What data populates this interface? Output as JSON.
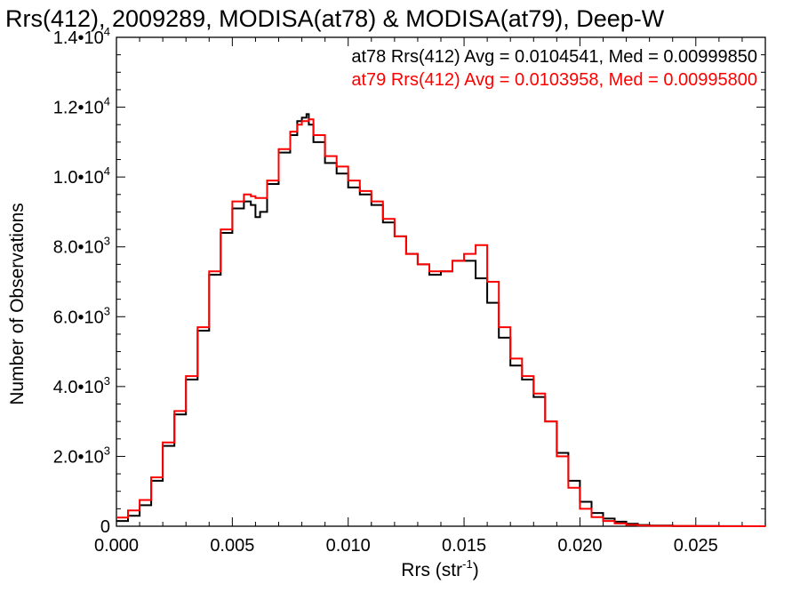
{
  "chart_data": {
    "type": "line",
    "step": true,
    "title": "Rrs(412), 2009289, MODISA(at78) & MODISA(at79), Deep-W",
    "xlabel": "Rrs (str",
    "xlabel_sup": "-1",
    "xlabel_close": ")",
    "ylabel": "Number of Observations",
    "xlim": [
      0.0,
      0.028
    ],
    "ylim": [
      0,
      14000
    ],
    "x_ticks": [
      {
        "value": 0.0,
        "label": "0.000"
      },
      {
        "value": 0.005,
        "label": "0.005"
      },
      {
        "value": 0.01,
        "label": "0.010"
      },
      {
        "value": 0.015,
        "label": "0.015"
      },
      {
        "value": 0.02,
        "label": "0.020"
      },
      {
        "value": 0.025,
        "label": "0.025"
      }
    ],
    "y_ticks": [
      {
        "value": 0,
        "mant": "0",
        "exp": ""
      },
      {
        "value": 2000,
        "mant": "2.0•10",
        "exp": "3"
      },
      {
        "value": 4000,
        "mant": "4.0•10",
        "exp": "3"
      },
      {
        "value": 6000,
        "mant": "6.0•10",
        "exp": "3"
      },
      {
        "value": 8000,
        "mant": "8.0•10",
        "exp": "3"
      },
      {
        "value": 10000,
        "mant": "1.0•10",
        "exp": "4"
      },
      {
        "value": 12000,
        "mant": "1.2•10",
        "exp": "4"
      },
      {
        "value": 14000,
        "mant": "1.4•10",
        "exp": "4"
      }
    ],
    "legend": [
      {
        "text": "at78 Rrs(412) Avg = 0.0104541, Med = 0.00999850",
        "color": "#000000"
      },
      {
        "text": "at79 Rrs(412) Avg = 0.0103958, Med = 0.00995800",
        "color": "#ff0000"
      }
    ],
    "legend_position": "top-right",
    "series": [
      {
        "color": "#000000",
        "x": [
          0.0,
          0.0005,
          0.001,
          0.0015,
          0.002,
          0.0025,
          0.003,
          0.0035,
          0.004,
          0.0045,
          0.005,
          0.0055,
          0.0058,
          0.006,
          0.0062,
          0.0065,
          0.007,
          0.0075,
          0.0078,
          0.008,
          0.0082,
          0.0083,
          0.0085,
          0.009,
          0.0095,
          0.01,
          0.0105,
          0.011,
          0.0115,
          0.012,
          0.0125,
          0.013,
          0.0135,
          0.014,
          0.0145,
          0.015,
          0.0155,
          0.016,
          0.0165,
          0.017,
          0.0175,
          0.018,
          0.0185,
          0.019,
          0.0195,
          0.02,
          0.0205,
          0.021,
          0.0215,
          0.022,
          0.0225,
          0.023,
          0.024,
          0.025,
          0.026,
          0.027,
          0.028
        ],
        "y": [
          150,
          300,
          600,
          1300,
          2300,
          3200,
          4200,
          5600,
          7200,
          8400,
          9100,
          9300,
          9200,
          8850,
          9000,
          9800,
          10700,
          11200,
          11600,
          11700,
          11800,
          11500,
          11000,
          10400,
          10100,
          9700,
          9500,
          9200,
          8700,
          8300,
          7800,
          7500,
          7200,
          7300,
          7600,
          7600,
          7100,
          6400,
          5400,
          4600,
          4200,
          3700,
          3000,
          2100,
          1300,
          700,
          380,
          220,
          130,
          70,
          35,
          20,
          8,
          4,
          2,
          1,
          0
        ]
      },
      {
        "color": "#ff0000",
        "x": [
          0.0,
          0.0005,
          0.001,
          0.0015,
          0.002,
          0.0025,
          0.003,
          0.0035,
          0.004,
          0.0045,
          0.005,
          0.0055,
          0.0058,
          0.006,
          0.0062,
          0.0065,
          0.007,
          0.0075,
          0.0078,
          0.008,
          0.0082,
          0.0083,
          0.0085,
          0.009,
          0.0095,
          0.01,
          0.0105,
          0.011,
          0.0115,
          0.012,
          0.0125,
          0.013,
          0.0135,
          0.014,
          0.0145,
          0.015,
          0.0155,
          0.016,
          0.0165,
          0.017,
          0.0175,
          0.018,
          0.0185,
          0.019,
          0.0195,
          0.02,
          0.0205,
          0.021,
          0.0215,
          0.022,
          0.0225,
          0.023,
          0.024,
          0.025,
          0.026,
          0.027,
          0.028
        ],
        "y": [
          250,
          450,
          750,
          1400,
          2400,
          3300,
          4300,
          5700,
          7300,
          8500,
          9300,
          9500,
          9450,
          9400,
          9400,
          9900,
          10800,
          11300,
          11500,
          11600,
          11600,
          11650,
          11200,
          10600,
          10300,
          9900,
          9600,
          9300,
          8800,
          8300,
          7800,
          7500,
          7300,
          7300,
          7600,
          7800,
          8050,
          7000,
          5700,
          4800,
          4300,
          3800,
          3000,
          2000,
          1100,
          500,
          260,
          150,
          80,
          40,
          20,
          10,
          5,
          2,
          1,
          0,
          0
        ]
      }
    ],
    "grid": false
  }
}
